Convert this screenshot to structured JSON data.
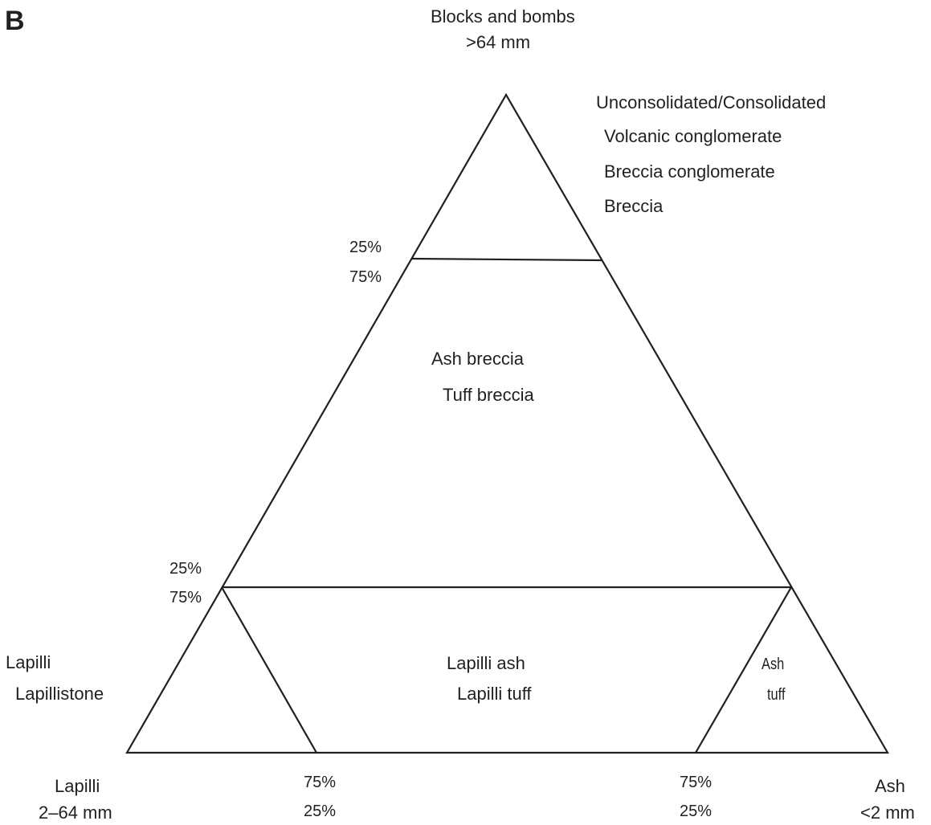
{
  "panel_label": "B",
  "vertices": {
    "top": {
      "line1": "Blocks and bombs",
      "line2": ">64 mm"
    },
    "left": {
      "line1": "Lapilli",
      "line2": "2–64 mm"
    },
    "right": {
      "line1": "Ash",
      "line2": "<2 mm"
    }
  },
  "top_region": {
    "header": "Unconsolidated/Consolidated",
    "items": [
      "Volcanic conglomerate",
      "Breccia conglomerate",
      "Breccia"
    ]
  },
  "middle_region": {
    "line1": "Ash breccia",
    "line2": "Tuff breccia"
  },
  "bottom_center_region": {
    "line1": "Lapilli ash",
    "line2": "Lapilli tuff"
  },
  "bottom_left_region": {
    "line1": "Lapilli",
    "line2": "Lapillistone"
  },
  "bottom_right_region": {
    "line1": "Ash",
    "line2": "tuff"
  },
  "boundary_labels": {
    "upper_left": [
      "25%",
      "75%"
    ],
    "lower_left": [
      "25%",
      "75%"
    ],
    "base_left": [
      "75%",
      "25%"
    ],
    "base_right": [
      "75%",
      "25%"
    ]
  },
  "colors": {
    "line": "#231f20",
    "background": "#ffffff"
  }
}
